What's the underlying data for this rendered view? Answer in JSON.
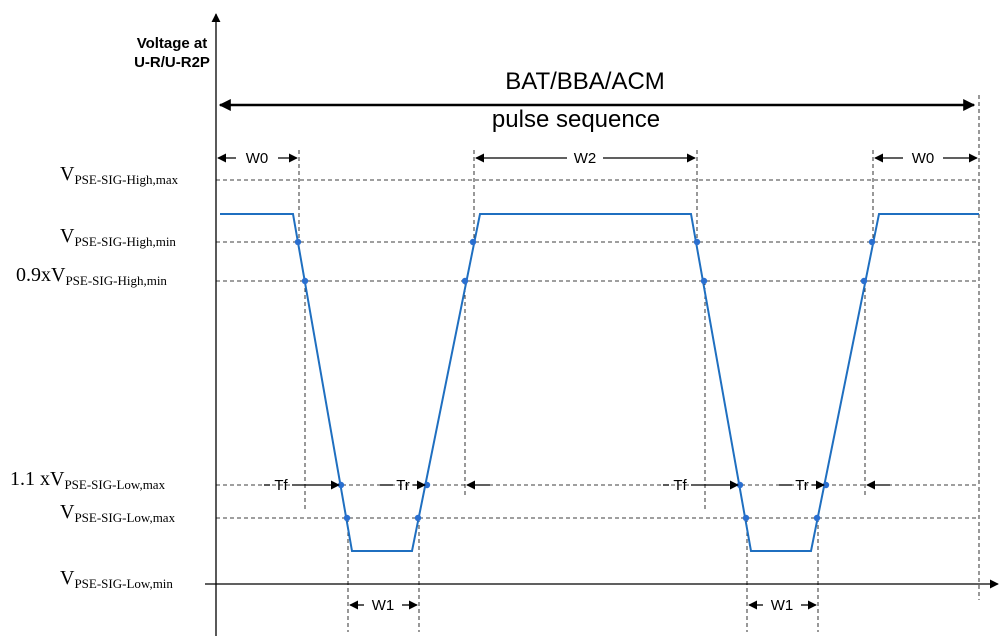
{
  "axis": {
    "y_title_line1": "Voltage at",
    "y_title_line2": "U-R/U-R2P"
  },
  "sequence": {
    "title_line1": "BAT/BBA/ACM",
    "title_line2": "pulse sequence"
  },
  "levels": {
    "high_max": {
      "main": "V",
      "sub": "PSE-SIG-High,max"
    },
    "high_min": {
      "main": "V",
      "sub": "PSE-SIG-High,min"
    },
    "high_min_09": {
      "main": "0.9xV",
      "sub": "PSE-SIG-High,min"
    },
    "low_max_11": {
      "main": "1.1 xV",
      "sub": "PSE-SIG-Low,max"
    },
    "low_max": {
      "main": "V",
      "sub": "PSE-SIG-Low,max"
    },
    "low_min": {
      "main": "V",
      "sub": "PSE-SIG-Low,min"
    }
  },
  "intervals": {
    "w0_left": "W0",
    "w2": "W2",
    "w0_right": "W0",
    "tf_1": "Tf",
    "tr_1": "Tr",
    "tf_2": "Tf",
    "tr_2": "Tr",
    "w1_1": "W1",
    "w1_2": "W1"
  },
  "colors": {
    "waveform": "#1f6fc0",
    "markers": "#2a6fd0",
    "axes": "#000000"
  }
}
